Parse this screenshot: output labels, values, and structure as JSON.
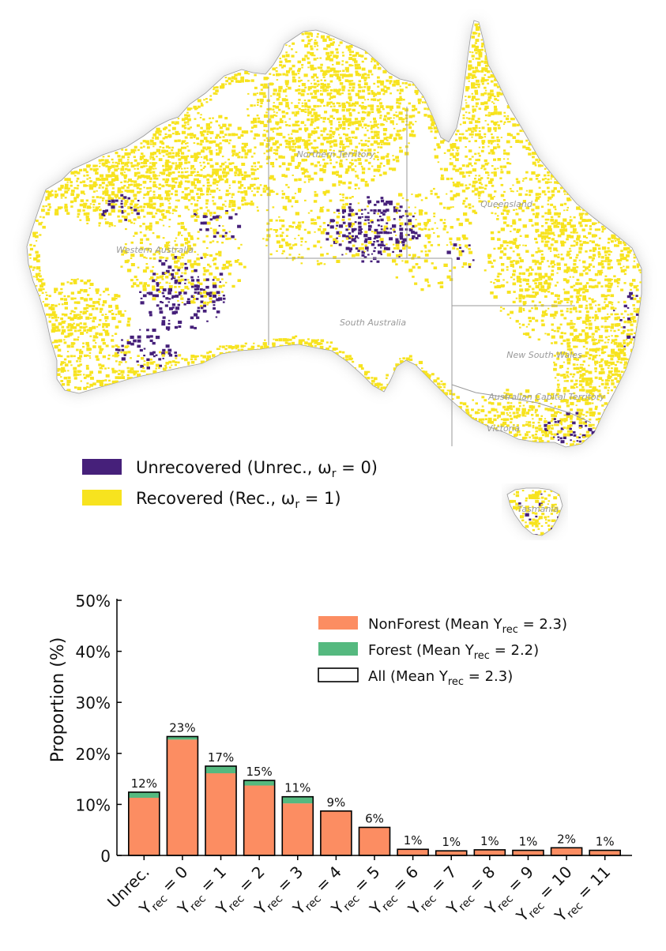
{
  "colors": {
    "unrecovered": "#46207a",
    "recovered": "#f7e31f",
    "nonforest": "#fc8d62",
    "forest": "#55b97f",
    "border": "#aaaaaa"
  },
  "map": {
    "state_labels": {
      "wa": "Western Australia",
      "nt": "Northern Territory",
      "qld": "Queensland",
      "sa": "South Australia",
      "nsw": "New South Wales",
      "act": "Australian Capital Territory",
      "vic": "Victoria",
      "tas": "Tasmania"
    },
    "legend": {
      "unrecovered": {
        "main": "Unrecovered (Unrec., ω",
        "sub": "r",
        "tail": " = 0)"
      },
      "recovered": {
        "main": "Recovered (Rec., ω",
        "sub": "r",
        "tail": " = 1)"
      }
    }
  },
  "chart_data": {
    "type": "bar",
    "stacked": true,
    "ylabel": "Proportion (%)",
    "ylim": [
      0,
      50
    ],
    "yticks": [
      "0",
      "10%",
      "20%",
      "30%",
      "40%",
      "50%"
    ],
    "categories": [
      {
        "main": "Unrec.",
        "sub": "",
        "tail": ""
      },
      {
        "main": "Y",
        "sub": "rec",
        "tail": " = 0"
      },
      {
        "main": "Y",
        "sub": "rec",
        "tail": " = 1"
      },
      {
        "main": "Y",
        "sub": "rec",
        "tail": " = 2"
      },
      {
        "main": "Y",
        "sub": "rec",
        "tail": " = 3"
      },
      {
        "main": "Y",
        "sub": "rec",
        "tail": " = 4"
      },
      {
        "main": "Y",
        "sub": "rec",
        "tail": " = 5"
      },
      {
        "main": "Y",
        "sub": "rec",
        "tail": " = 6"
      },
      {
        "main": "Y",
        "sub": "rec",
        "tail": " = 7"
      },
      {
        "main": "Y",
        "sub": "rec",
        "tail": " = 8"
      },
      {
        "main": "Y",
        "sub": "rec",
        "tail": " = 9"
      },
      {
        "main": "Y",
        "sub": "rec",
        "tail": " = 10"
      },
      {
        "main": "Y",
        "sub": "rec",
        "tail": " = 11"
      }
    ],
    "series": [
      {
        "name": "NonForest",
        "values": [
          11.3,
          22.7,
          16.1,
          13.7,
          10.2,
          8.6,
          5.5,
          1.1,
          0.8,
          1.0,
          0.9,
          1.4,
          0.9
        ]
      },
      {
        "name": "Forest",
        "values": [
          1.1,
          0.6,
          1.4,
          1.0,
          1.3,
          0.1,
          0.0,
          0.1,
          0.1,
          0.1,
          0.1,
          0.1,
          0.1
        ]
      }
    ],
    "data_labels": [
      "12%",
      "23%",
      "17%",
      "15%",
      "11%",
      "9%",
      "6%",
      "1%",
      "1%",
      "1%",
      "1%",
      "2%",
      "1%"
    ],
    "legend": [
      {
        "name": "NonForest",
        "main": "NonForest (Mean Y",
        "sub": "rec",
        "tail": " = 2.3)"
      },
      {
        "name": "Forest",
        "main": "Forest (Mean Y",
        "sub": "rec",
        "tail": " = 2.2)"
      },
      {
        "name": "All",
        "main": "All (Mean Y",
        "sub": "rec",
        "tail": " = 2.3)"
      }
    ],
    "legend_position": "top-right"
  }
}
